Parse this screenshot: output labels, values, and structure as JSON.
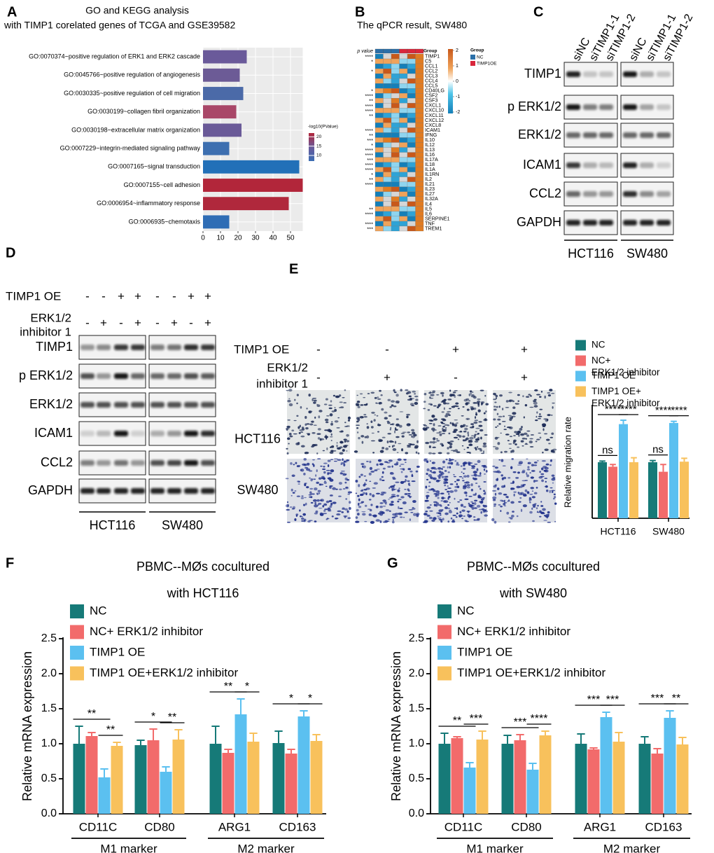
{
  "panel_labels": [
    "A",
    "B",
    "C",
    "D",
    "E",
    "F",
    "G"
  ],
  "chart_data": [
    {
      "type": "barh",
      "title": "GO and KEGG analysis",
      "subtitle": "with TIMP1  corelated genes of TCGA and GSE39582",
      "categories": [
        "GO:0070374~positive regulation of ERK1 and ERK2 cascade",
        "GO:0045766~positive regulation of angiogenesis",
        "GO:0030335~positive regulation of cell migration",
        "GO:0030199~collagen fibril organization",
        "GO:0030198~extracellular matrix organization",
        "GO:0007229~integrin-mediated signaling pathway",
        "GO:0007165~signal transduction",
        "GO:0007155~cell adhesion",
        "GO:0006954~inflammatory response",
        "GO:0006935~chemotaxis"
      ],
      "values": [
        25,
        21,
        23,
        19,
        22,
        15,
        55,
        57,
        49,
        15
      ],
      "colors": [
        "#6a5a9a",
        "#6c5b96",
        "#4b6aa8",
        "#a94768",
        "#6a5a98",
        "#3d6fb0",
        "#2270b8",
        "#b2263a",
        "#b0283c",
        "#2f6db5"
      ],
      "xlim": [
        0,
        57
      ],
      "xticks": [
        0,
        10,
        20,
        30,
        40,
        50
      ],
      "grid": true,
      "legend": {
        "title": "-log10(PValue)",
        "ticks": [
          10,
          15,
          20
        ],
        "range": [
          7,
          22
        ],
        "colors": [
          "#3b6db3",
          "#6a5a9a",
          "#b2263a"
        ]
      }
    },
    {
      "type": "bar",
      "ylabel": "Relative migration rate",
      "categories": [
        "HCT116",
        "SW480"
      ],
      "ylim": [
        0,
        2
      ],
      "series": [
        {
          "name": "NC",
          "color": "#167a78",
          "values": [
            1.0,
            1.0
          ],
          "errors": [
            0.02,
            0.03
          ]
        },
        {
          "name": "NC+ ERK1/2 inhibitor",
          "color": "#f26b6b",
          "values": [
            0.92,
            0.83
          ],
          "errors": [
            0.04,
            0.13
          ]
        },
        {
          "name": "TIMP1 OE",
          "color": "#5bc0f0",
          "values": [
            1.68,
            1.7
          ],
          "errors": [
            0.07,
            0.03
          ]
        },
        {
          "name": "TIMP1 OE+ ERK1/2 inhibitor",
          "color": "#f8c15c",
          "values": [
            1.0,
            1.01
          ],
          "errors": [
            0.08,
            0.06
          ]
        }
      ],
      "annotations": [
        [
          "ns",
          "****",
          "****"
        ],
        [
          "ns",
          "****",
          "****"
        ]
      ]
    },
    {
      "type": "bar",
      "title": "PBMC--MØs cocultured",
      "subtitle": "with HCT116",
      "ylabel": "Relative mRNA expression",
      "categories": [
        "CD11C",
        "CD80",
        "ARG1",
        "CD163"
      ],
      "groups": [
        "M1 marker",
        "M2 marker"
      ],
      "ylim": [
        0,
        2.5
      ],
      "yticks": [
        {
          "value": 0,
          "label": "0.0"
        },
        0.5,
        {
          "value": 1,
          "label": "1.0"
        },
        1.5,
        {
          "value": 2,
          "label": "2.0"
        },
        2.5
      ],
      "series": [
        {
          "name": "NC",
          "color": "#167a78",
          "values": [
            1.0,
            0.98,
            1.0,
            1.01
          ],
          "errors": [
            0.25,
            0.07,
            0.25,
            0.17
          ]
        },
        {
          "name": "NC+ ERK1/2 inhibitor",
          "color": "#f26b6b",
          "values": [
            1.11,
            1.05,
            0.87,
            0.86
          ],
          "errors": [
            0.05,
            0.16,
            0.05,
            0.06
          ]
        },
        {
          "name": "TIMP1 OE",
          "color": "#5bc0f0",
          "values": [
            0.52,
            0.6,
            1.42,
            1.39
          ],
          "errors": [
            0.12,
            0.07,
            0.22,
            0.08
          ]
        },
        {
          "name": "TIMP1 OE+ERK1/2 inhibitor",
          "color": "#f8c15c",
          "values": [
            0.97,
            1.06,
            1.03,
            1.04
          ],
          "errors": [
            0.05,
            0.14,
            0.12,
            0.09
          ]
        }
      ],
      "annotations": [
        [
          "**",
          "**"
        ],
        [
          "*",
          "**"
        ],
        [
          "**",
          "*"
        ],
        [
          "*",
          "*"
        ]
      ]
    },
    {
      "type": "bar",
      "title": "PBMC--MØs cocultured",
      "subtitle": "with SW480",
      "ylabel": "Relative mRNA expression",
      "categories": [
        "CD11C",
        "CD80",
        "ARG1",
        "CD163"
      ],
      "groups": [
        "M1 marker",
        "M2 marker"
      ],
      "ylim": [
        0,
        2.5
      ],
      "yticks": [
        {
          "value": 0,
          "label": "0.0"
        },
        0.5,
        {
          "value": 1,
          "label": "1.0"
        },
        1.5,
        {
          "value": 2,
          "label": "2.0"
        },
        2.5
      ],
      "series": [
        {
          "name": "NC",
          "color": "#167a78",
          "values": [
            1.0,
            1.0,
            1.0,
            1.0
          ],
          "errors": [
            0.15,
            0.12,
            0.14,
            0.1
          ]
        },
        {
          "name": "NC+ ERK1/2 inhibitor",
          "color": "#f26b6b",
          "values": [
            1.08,
            1.05,
            0.92,
            0.86
          ],
          "errors": [
            0.02,
            0.08,
            0.02,
            0.07
          ]
        },
        {
          "name": "TIMP1 OE",
          "color": "#5bc0f0",
          "values": [
            0.66,
            0.63,
            1.38,
            1.37
          ],
          "errors": [
            0.07,
            0.09,
            0.07,
            0.1
          ]
        },
        {
          "name": "TIMP1 OE+ERK1/2 inhibitor",
          "color": "#f8c15c",
          "values": [
            1.06,
            1.12,
            1.03,
            0.99
          ],
          "errors": [
            0.12,
            0.06,
            0.13,
            0.1
          ]
        }
      ],
      "annotations": [
        [
          "**",
          "***"
        ],
        [
          "***",
          "****"
        ],
        [
          "***",
          "***"
        ],
        [
          "***",
          "**"
        ]
      ]
    }
  ],
  "heatmap": {
    "title": "The qPCR result, SW480",
    "p_header": "p value",
    "group_header": "Group",
    "genes": [
      "TIMP1",
      "C5",
      "CCL1",
      "CCL2",
      "CCL3",
      "CCL4",
      "CCL5",
      "CD40LG",
      "CSF2",
      "CSF3",
      "CXCL1",
      "CXCL10",
      "CXCL11",
      "CXCL12",
      "CXCL8",
      "ICAM1",
      "IFNG",
      "IL10",
      "IL12",
      "IL13",
      "IL16",
      "IL17A",
      "IL18",
      "IL1A",
      "IL1RN",
      "IL2",
      "IL21",
      "IL23",
      "IL27",
      "IL32A",
      "IL4",
      "IL5",
      "IL6",
      "SERPINE1",
      "TNF",
      "TREM1"
    ],
    "p_values": [
      "****",
      "*",
      null,
      "*",
      null,
      null,
      null,
      "*",
      "****",
      "**",
      "****",
      "****",
      "**",
      null,
      null,
      "****",
      "**",
      "***",
      "*",
      "****",
      "****",
      "***",
      "****",
      "****",
      "*",
      "**",
      "****",
      null,
      null,
      null,
      null,
      "**",
      "****",
      null,
      "****",
      "***"
    ],
    "groups": [
      {
        "name": "NC",
        "color": "#2b6fa8"
      },
      {
        "name": "TIMP1OE",
        "color": "#d9263b"
      }
    ],
    "scale_ticks": [
      2,
      1,
      0,
      -1,
      -2
    ]
  },
  "blot_c": {
    "lanes": [
      "siNC",
      "siTIMP1-1",
      "siTIMP1-2",
      "siNC",
      "siTIMP1-1",
      "siTIMP1-2"
    ],
    "rows": [
      {
        "name": "TIMP1",
        "intensity": [
          0.9,
          0.2,
          0.2,
          0.95,
          0.3,
          0.2
        ]
      },
      {
        "name": "p ERK1/2",
        "intensity": [
          0.95,
          0.5,
          0.5,
          0.95,
          0.35,
          0.2
        ]
      },
      {
        "name": "ERK1/2",
        "intensity": [
          0.6,
          0.6,
          0.6,
          0.6,
          0.6,
          0.6
        ]
      },
      {
        "name": "ICAM1",
        "intensity": [
          0.8,
          0.3,
          0.25,
          0.9,
          0.3,
          0.15
        ]
      },
      {
        "name": "CCL2",
        "intensity": [
          0.6,
          0.4,
          0.4,
          0.85,
          0.45,
          0.35
        ]
      },
      {
        "name": "GAPDH",
        "intensity": [
          0.9,
          0.9,
          0.9,
          0.9,
          0.9,
          0.9
        ]
      }
    ],
    "cell_lines": [
      "HCT116",
      "SW480"
    ]
  },
  "blot_d": {
    "conditions": [
      {
        "label": [
          "TIMP1 OE"
        ],
        "signs": [
          "-",
          "-",
          "+",
          "+",
          "-",
          "-",
          "+",
          "+"
        ]
      },
      {
        "label": [
          "ERK1/2",
          "inhibitor 1"
        ],
        "signs": [
          "-",
          "+",
          "-",
          "+",
          "-",
          "+",
          "-",
          "+"
        ]
      }
    ],
    "rows": [
      {
        "name": "TIMP1",
        "intensity": [
          0.4,
          0.45,
          0.8,
          0.8,
          0.5,
          0.55,
          0.85,
          0.8
        ]
      },
      {
        "name": "p ERK1/2",
        "intensity": [
          0.7,
          0.4,
          0.95,
          0.6,
          0.6,
          0.6,
          0.7,
          0.65
        ]
      },
      {
        "name": "ERK1/2",
        "intensity": [
          0.7,
          0.7,
          0.7,
          0.7,
          0.7,
          0.7,
          0.7,
          0.7
        ]
      },
      {
        "name": "ICAM1",
        "intensity": [
          0.15,
          0.25,
          0.95,
          0.15,
          0.3,
          0.4,
          0.95,
          0.85
        ]
      },
      {
        "name": "CCL2",
        "intensity": [
          0.5,
          0.4,
          0.55,
          0.4,
          0.7,
          0.75,
          0.95,
          0.7
        ]
      },
      {
        "name": "GAPDH",
        "intensity": [
          0.9,
          0.9,
          0.9,
          0.9,
          0.9,
          0.9,
          0.9,
          0.9
        ]
      }
    ],
    "cell_lines": [
      "HCT116",
      "SW480"
    ]
  },
  "migration_images": {
    "conditions": [
      {
        "label": [
          "TIMP1 OE"
        ],
        "signs": [
          "-",
          "-",
          "+",
          "+"
        ]
      },
      {
        "label": [
          "ERK1/2",
          "inhibitor 1"
        ],
        "signs": [
          "-",
          "+",
          "-",
          "+"
        ]
      }
    ],
    "rows": [
      "HCT116",
      "SW480"
    ]
  }
}
